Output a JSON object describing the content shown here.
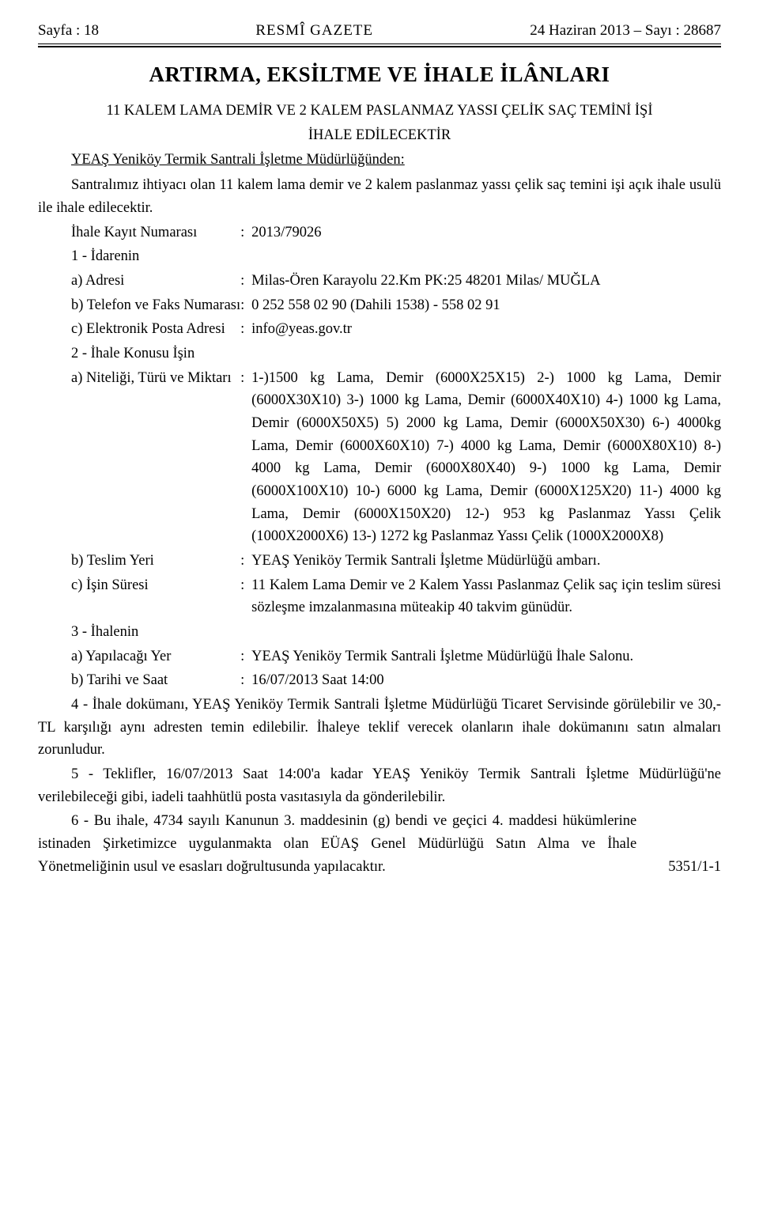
{
  "header": {
    "page_label": "Sayfa : 18",
    "gazette_name": "RESMÎ GAZETE",
    "date_issue": "24 Haziran 2013 – Sayı : 28687"
  },
  "main_title": "ARTIRMA, EKSİLTME VE İHALE İLÂNLARI",
  "sub_title_line1": "11 KALEM LAMA DEMİR VE 2 KALEM PASLANMAZ YASSI ÇELİK SAÇ TEMİNİ İŞİ",
  "sub_title_line2": "İHALE EDİLECEKTİR",
  "authority": "YEAŞ Yeniköy Termik Santrali İşletme Müdürlüğünden:",
  "intro": "Santralımız ihtiyacı olan 11 kalem lama demir ve 2 kalem paslanmaz yassı çelik saç temini işi açık ihale usulü ile ihale edilecektir.",
  "specs": [
    {
      "label": "İhale Kayıt Numarası",
      "value": "2013/79026"
    },
    {
      "label": "1 - İdarenin",
      "value": ""
    },
    {
      "label": "a) Adresi",
      "value": "Milas-Ören Karayolu 22.Km PK:25 48201 Milas/ MUĞLA"
    },
    {
      "label": "b) Telefon ve Faks Numarası",
      "value": "0 252 558 02 90 (Dahili 1538) - 558 02 91"
    },
    {
      "label": "c) Elektronik Posta Adresi",
      "value": "info@yeas.gov.tr"
    },
    {
      "label": "2 - İhale Konusu İşin",
      "value": ""
    },
    {
      "label": "a) Niteliği, Türü ve Miktarı",
      "value": "1-)1500 kg Lama, Demir (6000X25X15) 2-) 1000 kg Lama, Demir (6000X30X10) 3-) 1000 kg Lama, Demir (6000X40X10) 4-) 1000 kg Lama, Demir (6000X50X5) 5) 2000 kg Lama, Demir (6000X50X30) 6-) 4000kg Lama, Demir (6000X60X10) 7-) 4000 kg Lama, Demir (6000X80X10) 8-) 4000 kg Lama, Demir (6000X80X40) 9-) 1000 kg Lama, Demir (6000X100X10) 10-) 6000 kg Lama, Demir (6000X125X20) 11-) 4000 kg Lama, Demir (6000X150X20) 12-) 953 kg Paslanmaz Yassı Çelik (1000X2000X6) 13-) 1272 kg Paslanmaz Yassı Çelik (1000X2000X8)"
    },
    {
      "label": "b) Teslim Yeri",
      "value": "YEAŞ Yeniköy Termik Santrali İşletme Müdürlüğü ambarı."
    },
    {
      "label": "c) İşin Süresi",
      "value": "11 Kalem Lama Demir ve 2 Kalem Yassı Paslanmaz Çelik saç için teslim süresi sözleşme imzalanmasına müteakip 40 takvim günüdür."
    },
    {
      "label": "3 - İhalenin",
      "value": ""
    },
    {
      "label": "a) Yapılacağı Yer",
      "value": "YEAŞ Yeniköy Termik Santrali İşletme Müdürlüğü İhale Salonu."
    },
    {
      "label": "b) Tarihi ve Saat",
      "value": "16/07/2013 Saat 14:00"
    }
  ],
  "paras": [
    "4 - İhale dokümanı, YEAŞ Yeniköy Termik Santrali İşletme Müdürlüğü Ticaret Servisinde görülebilir ve 30,-TL karşılığı aynı adresten temin edilebilir. İhaleye teklif verecek olanların ihale dokümanını satın almaları zorunludur.",
    "5 - Teklifler, 16/07/2013 Saat 14:00'a kadar YEAŞ Yeniköy Termik Santrali İşletme Müdürlüğü'ne verilebileceği gibi, iadeli taahhütlü posta vasıtasıyla da gönderilebilir.",
    "6 - Bu ihale, 4734 sayılı Kanunun 3. maddesinin (g) bendi ve geçici 4. maddesi hükümlerine istinaden Şirketimizce uygulanmakta olan EÜAŞ Genel Müdürlüğü Satın Alma ve İhale Yönetmeliğinin usul ve esasları doğrultusunda yapılacaktır."
  ],
  "ref_number": "5351/1-1"
}
